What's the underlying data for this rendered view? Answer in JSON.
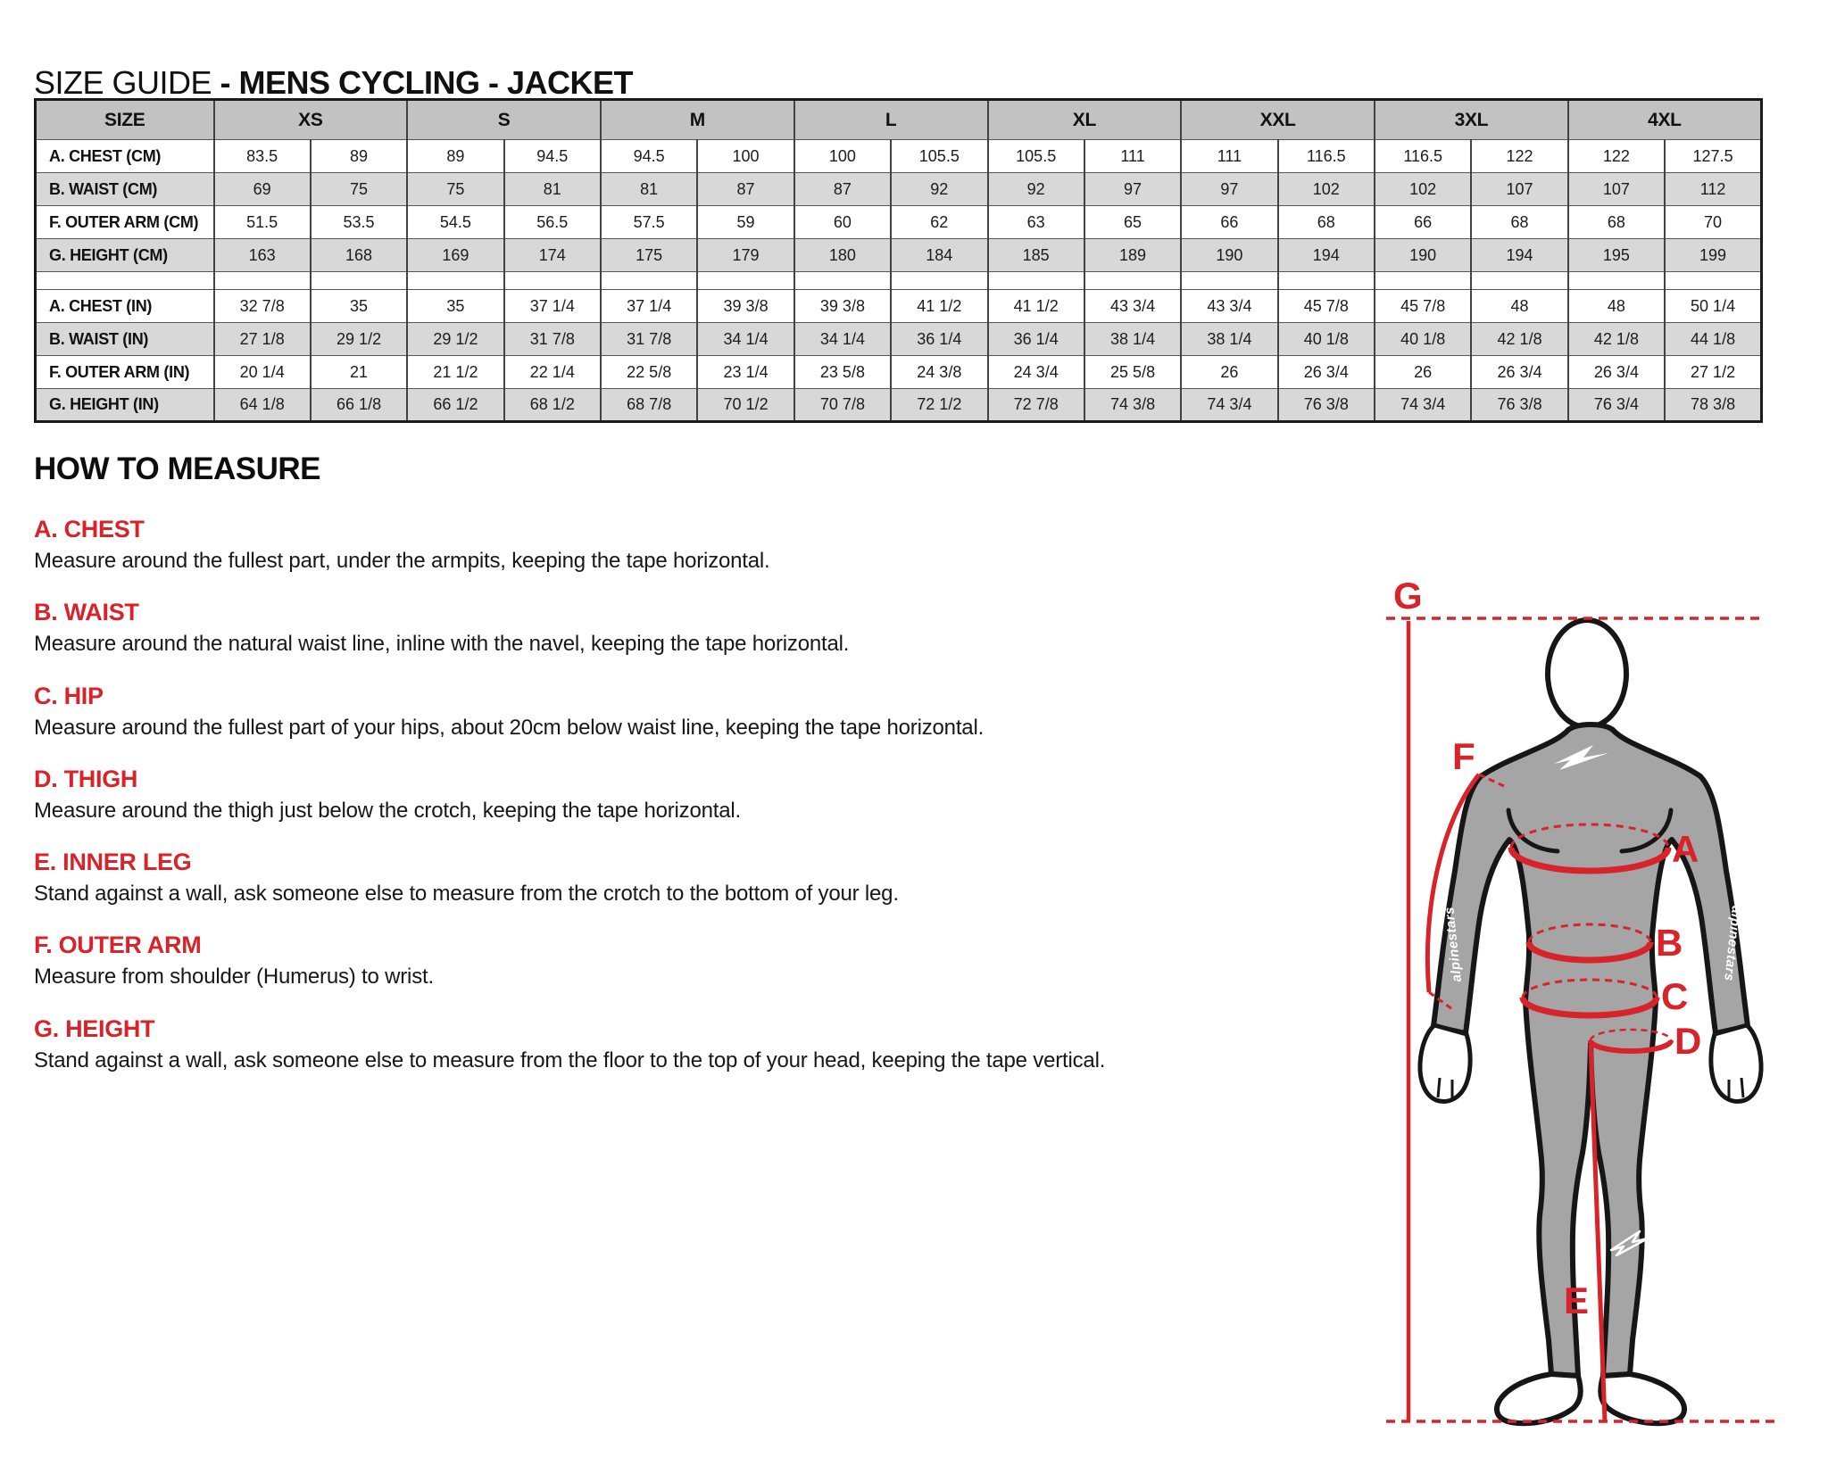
{
  "title": {
    "prefix": "SIZE GUIDE ",
    "bold": "- MENS CYCLING - JACKET"
  },
  "size_table": {
    "corner_label": "SIZE",
    "sizes": [
      "XS",
      "S",
      "M",
      "L",
      "XL",
      "XXL",
      "3XL",
      "4XL"
    ],
    "rows": [
      {
        "label": "A. CHEST (CM)",
        "shade": false,
        "values": [
          "83.5",
          "89",
          "89",
          "94.5",
          "94.5",
          "100",
          "100",
          "105.5",
          "105.5",
          "111",
          "111",
          "116.5",
          "116.5",
          "122",
          "122",
          "127.5"
        ]
      },
      {
        "label": "B. WAIST (CM)",
        "shade": true,
        "values": [
          "69",
          "75",
          "75",
          "81",
          "81",
          "87",
          "87",
          "92",
          "92",
          "97",
          "97",
          "102",
          "102",
          "107",
          "107",
          "112"
        ]
      },
      {
        "label": "F. OUTER ARM (CM)",
        "shade": false,
        "values": [
          "51.5",
          "53.5",
          "54.5",
          "56.5",
          "57.5",
          "59",
          "60",
          "62",
          "63",
          "65",
          "66",
          "68",
          "66",
          "68",
          "68",
          "70"
        ]
      },
      {
        "label": "G. HEIGHT (CM)",
        "shade": true,
        "values": [
          "163",
          "168",
          "169",
          "174",
          "175",
          "179",
          "180",
          "184",
          "185",
          "189",
          "190",
          "194",
          "190",
          "194",
          "195",
          "199"
        ]
      },
      {
        "spacer": true
      },
      {
        "label": "A. CHEST (IN)",
        "shade": false,
        "values": [
          "32 7/8",
          "35",
          "35",
          "37 1/4",
          "37 1/4",
          "39 3/8",
          "39 3/8",
          "41 1/2",
          "41 1/2",
          "43 3/4",
          "43 3/4",
          "45 7/8",
          "45 7/8",
          "48",
          "48",
          "50 1/4"
        ]
      },
      {
        "label": "B. WAIST (IN)",
        "shade": true,
        "values": [
          "27 1/8",
          "29 1/2",
          "29 1/2",
          "31 7/8",
          "31 7/8",
          "34 1/4",
          "34 1/4",
          "36 1/4",
          "36 1/4",
          "38 1/4",
          "38 1/4",
          "40 1/8",
          "40 1/8",
          "42 1/8",
          "42 1/8",
          "44 1/8"
        ]
      },
      {
        "label": "F. OUTER ARM (IN)",
        "shade": false,
        "values": [
          "20 1/4",
          "21",
          "21 1/2",
          "22 1/4",
          "22 5/8",
          "23 1/4",
          "23 5/8",
          "24 3/8",
          "24 3/4",
          "25 5/8",
          "26",
          "26 3/4",
          "26",
          "26 3/4",
          "26 3/4",
          "27 1/2"
        ]
      },
      {
        "label": "G. HEIGHT (IN)",
        "shade": true,
        "values": [
          "64 1/8",
          "66 1/8",
          "66 1/2",
          "68 1/2",
          "68 7/8",
          "70 1/2",
          "70 7/8",
          "72 1/2",
          "72 7/8",
          "74 3/8",
          "74 3/4",
          "76 3/8",
          "74 3/4",
          "76 3/8",
          "76 3/4",
          "78 3/8"
        ]
      }
    ]
  },
  "how_to_measure": {
    "heading": "HOW TO MEASURE",
    "sections": [
      {
        "label": "A. CHEST",
        "description": "Measure around the fullest part, under the armpits, keeping the tape horizontal."
      },
      {
        "label": "B. WAIST",
        "description": "Measure around the natural waist line, inline with the navel, keeping the tape horizontal."
      },
      {
        "label": "C. HIP",
        "description": "Measure around the fullest part of your hips, about 20cm below waist line, keeping the tape horizontal."
      },
      {
        "label": "D. THIGH",
        "description": "Measure around the thigh just below the crotch, keeping the tape horizontal."
      },
      {
        "label": "E. INNER LEG",
        "description": "Stand against a wall, ask someone else to measure from the crotch to the bottom of your leg."
      },
      {
        "label": "F. OUTER ARM",
        "description": "Measure from shoulder (Humerus) to wrist."
      },
      {
        "label": "G. HEIGHT",
        "description": "Stand against a wall, ask someone else to measure from the floor to the top of your head, keeping the tape vertical."
      }
    ]
  },
  "diagram": {
    "labels": {
      "a": "A",
      "b": "B",
      "c": "C",
      "d": "D",
      "e": "E",
      "f": "F",
      "g": "G"
    },
    "brand_text": "alpinestars"
  },
  "colors": {
    "accent_red": "#d8232a",
    "header_gray": "#c2c2c2",
    "row_alt_gray": "#d8d8d8",
    "body_suit_gray": "#a5a5a5",
    "border_dark": "#424242"
  }
}
